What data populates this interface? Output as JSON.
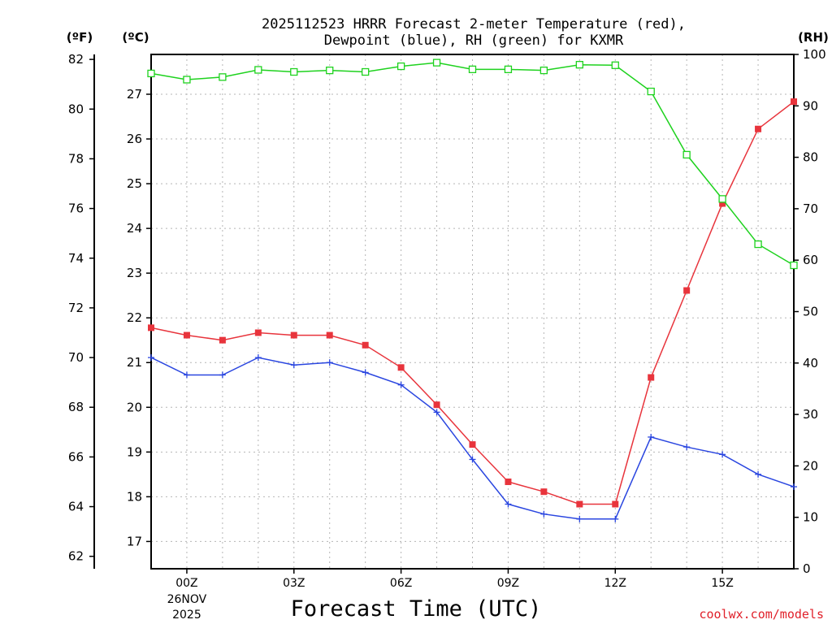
{
  "chart_data": {
    "type": "line",
    "title_line1": "2025112523 HRRR Forecast 2-meter Temperature (red),",
    "title_line2": "Dewpoint (blue), RH (green) for KXMR",
    "xlabel": "Forecast Time (UTC)",
    "credit": "coolwx.com/models",
    "left_f_unit": "(ºF)",
    "left_c_unit": "(ºC)",
    "right_unit": "(RH)",
    "f_ticks": [
      "62",
      "64",
      "66",
      "68",
      "70",
      "72",
      "74",
      "76",
      "78",
      "80",
      "82"
    ],
    "c_ticks": [
      "17",
      "18",
      "19",
      "20",
      "21",
      "22",
      "23",
      "24",
      "25",
      "26",
      "27"
    ],
    "rh_ticks": [
      "0",
      "10",
      "20",
      "30",
      "40",
      "50",
      "60",
      "70",
      "80",
      "90",
      "100"
    ],
    "f_range": [
      61.5,
      82.2
    ],
    "c_range": [
      16.39,
      27.89
    ],
    "rh_range": [
      0,
      100
    ],
    "x_range": [
      -1,
      17
    ],
    "x_ticks": [
      {
        "x": 0,
        "label": "00Z",
        "sub1": "26NOV",
        "sub2": "2025"
      },
      {
        "x": 3,
        "label": "03Z"
      },
      {
        "x": 6,
        "label": "06Z"
      },
      {
        "x": 9,
        "label": "09Z"
      },
      {
        "x": 12,
        "label": "12Z"
      },
      {
        "x": 15,
        "label": "15Z"
      }
    ],
    "x": [
      -1,
      0,
      1,
      2,
      3,
      4,
      5,
      6,
      7,
      8,
      9,
      10,
      11,
      12,
      13,
      14,
      15,
      16,
      17
    ],
    "series": [
      {
        "name": "Temperature",
        "units": "F",
        "color": "#e8343c",
        "marker": "filled-square",
        "values": [
          71.2,
          70.9,
          70.7,
          71.0,
          70.9,
          70.9,
          70.5,
          69.6,
          68.1,
          66.5,
          65.0,
          64.6,
          64.1,
          64.1,
          69.2,
          72.7,
          76.2,
          79.2,
          80.3
        ]
      },
      {
        "name": "Dewpoint",
        "units": "F",
        "color": "#2a46e0",
        "marker": "plus",
        "values": [
          70.0,
          69.3,
          69.3,
          70.0,
          69.7,
          69.8,
          69.4,
          68.9,
          67.8,
          65.9,
          64.1,
          63.7,
          63.5,
          63.5,
          66.8,
          66.4,
          66.1,
          65.3,
          64.8
        ]
      },
      {
        "name": "RH",
        "units": "%",
        "color": "#1ed21e",
        "marker": "open-square",
        "values": [
          96.3,
          95.1,
          95.6,
          97.0,
          96.6,
          96.9,
          96.6,
          97.7,
          98.4,
          97.1,
          97.1,
          96.9,
          98.0,
          97.9,
          92.8,
          80.5,
          71.9,
          63.1,
          59.0
        ]
      }
    ]
  }
}
